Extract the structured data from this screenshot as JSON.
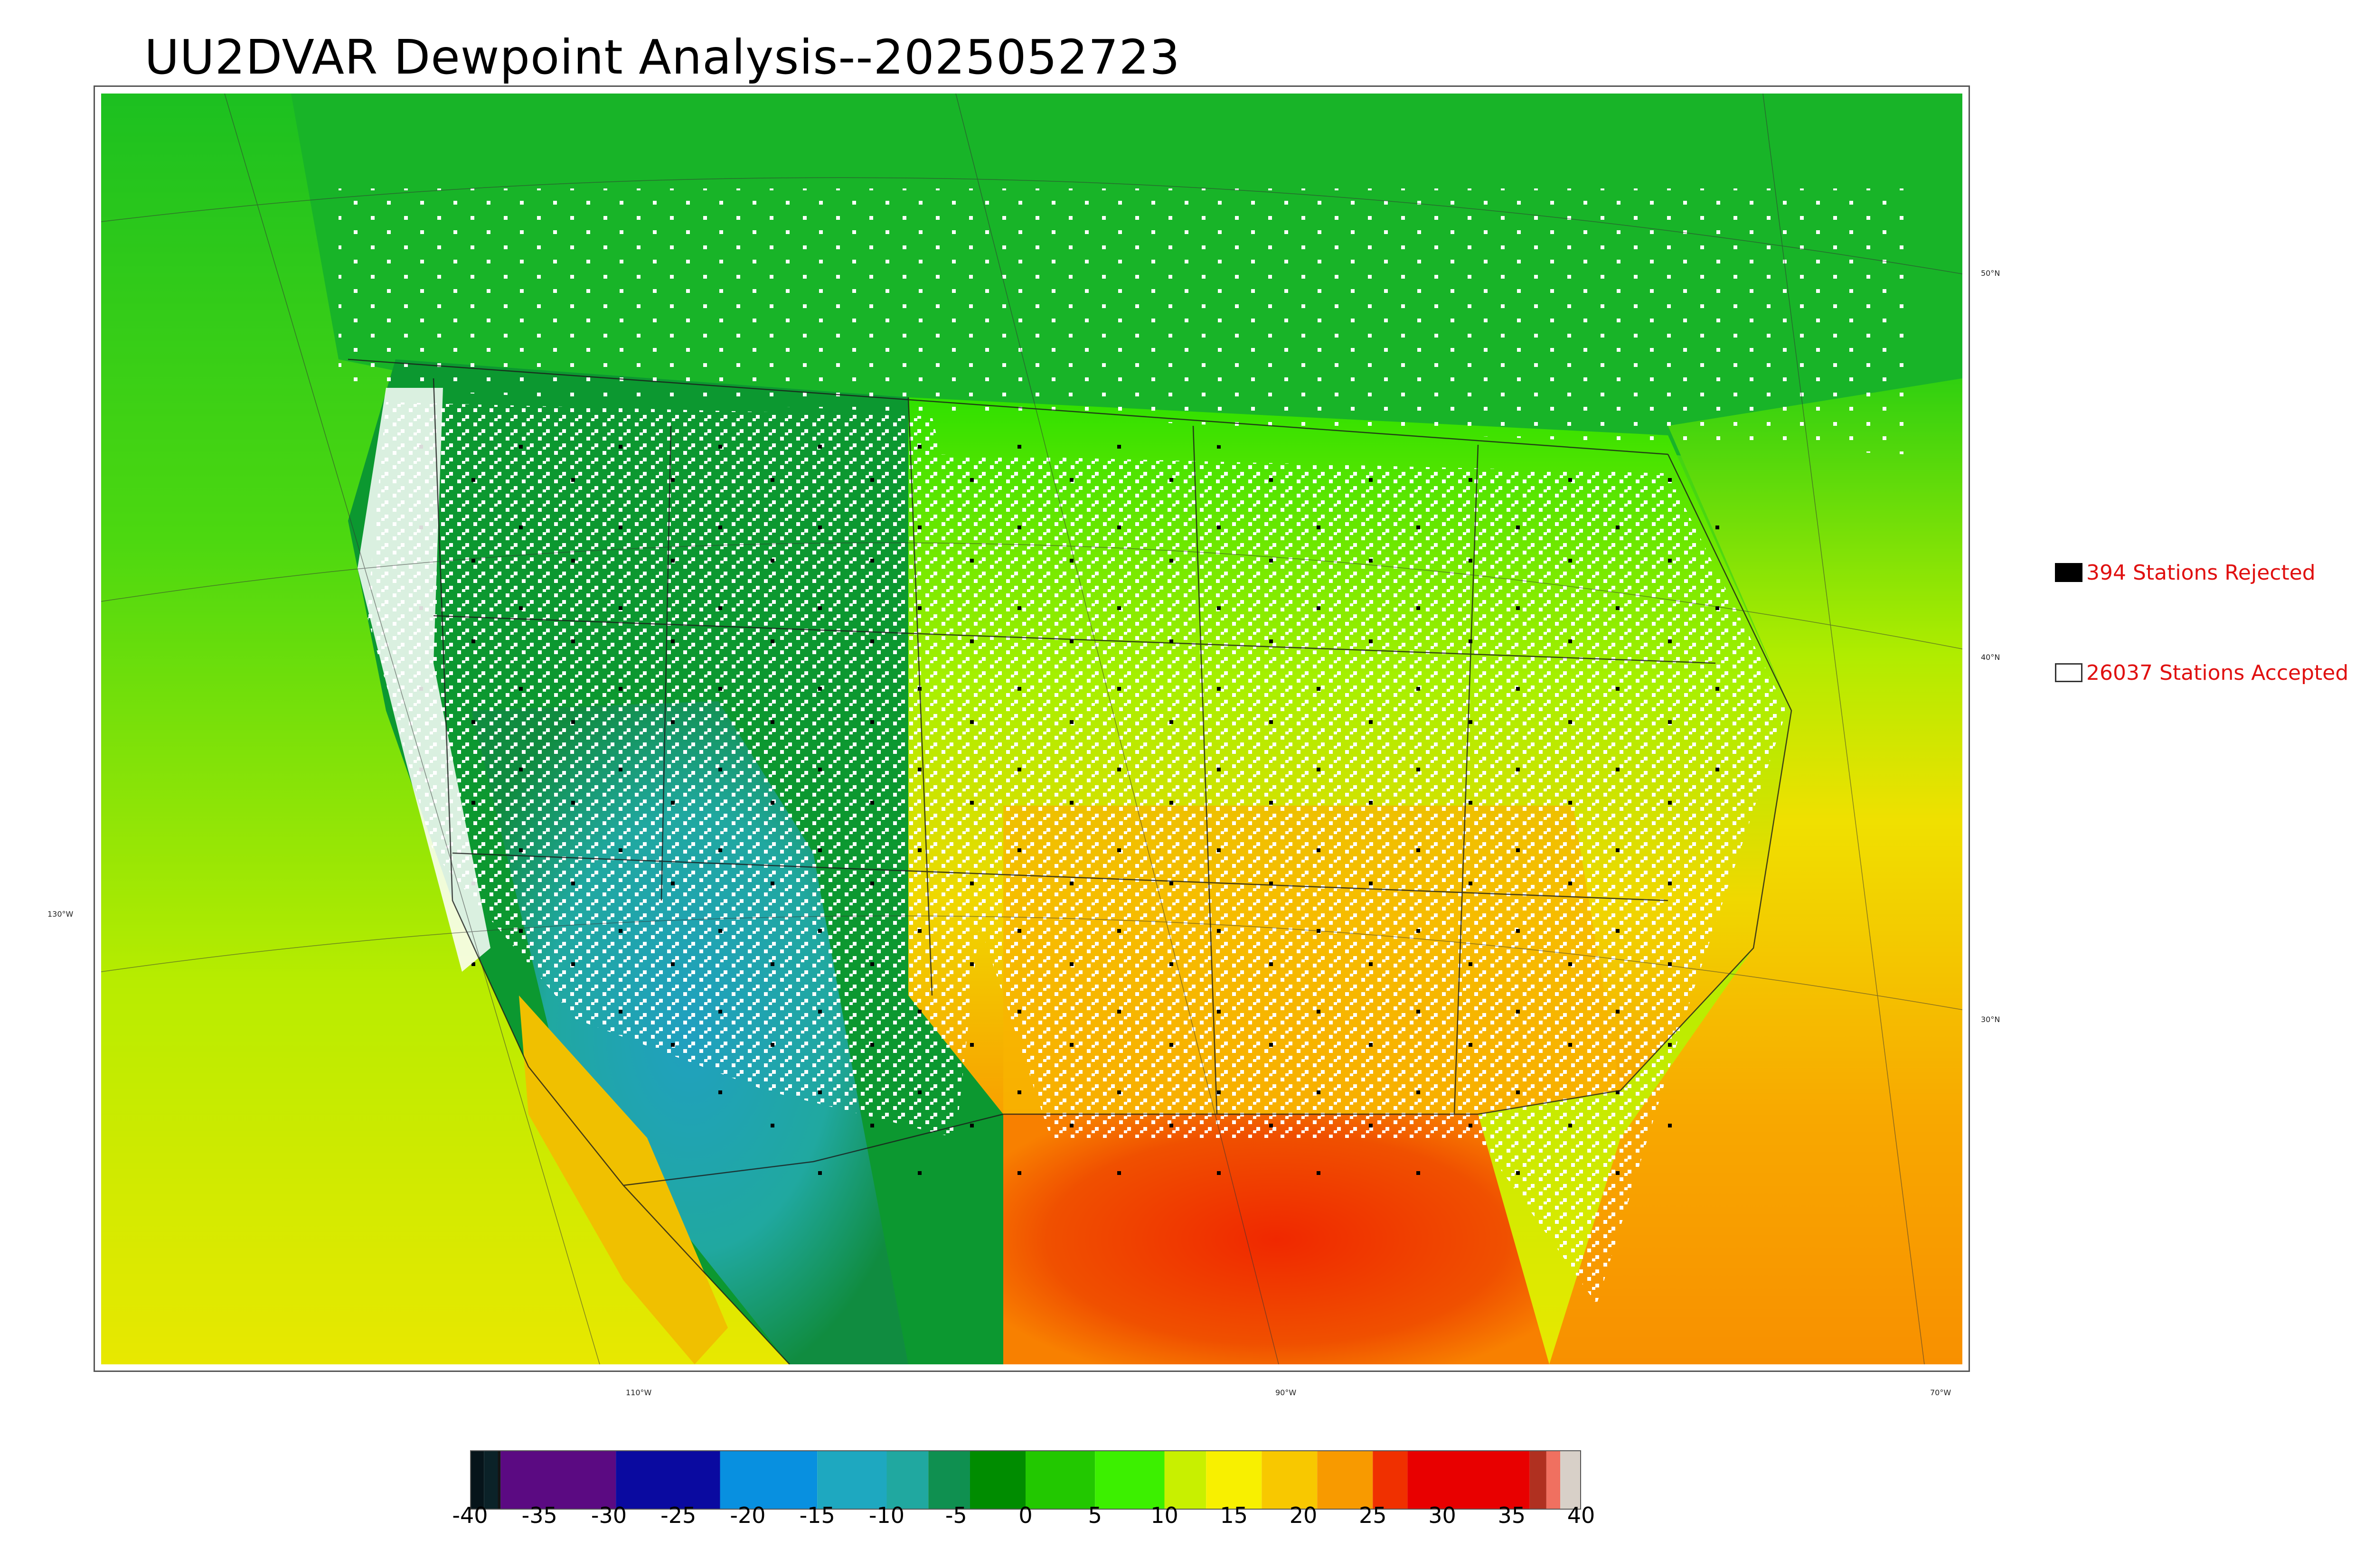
{
  "title": "UU2DVAR Dewpoint Analysis--2025052723",
  "grid_labels": {
    "lat": [
      "50°N",
      "40°N",
      "30°N"
    ],
    "lon_left": "130°W",
    "lon_bottom": [
      "110°W",
      "90°W",
      "70°W"
    ]
  },
  "legend": {
    "rejected": {
      "label": "394 Stations Rejected",
      "swatch_color": "#000000"
    },
    "accepted": {
      "label": "26037 Stations Accepted",
      "swatch_color": "#ffffff"
    }
  },
  "colorbar": {
    "ticks": [
      "-40",
      "-35",
      "-30",
      "-25",
      "-20",
      "-15",
      "-10",
      "-5",
      "0",
      "5",
      "10",
      "15",
      "20",
      "25",
      "30",
      "35",
      "40"
    ],
    "range": [
      -40,
      40
    ],
    "segments": [
      {
        "from": -40,
        "to": -39,
        "color": "#06141a"
      },
      {
        "from": -39,
        "to": -38,
        "color": "#0b2228"
      },
      {
        "from": -38,
        "to": -37.8,
        "color": "#141414"
      },
      {
        "from": -37.8,
        "to": -29.5,
        "color": "#5b0a82"
      },
      {
        "from": -29.5,
        "to": -22,
        "color": "#0a0aa0"
      },
      {
        "from": -22,
        "to": -15,
        "color": "#0890e0"
      },
      {
        "from": -15,
        "to": -10,
        "color": "#1ea8c0"
      },
      {
        "from": -10,
        "to": -7,
        "color": "#20a8a0"
      },
      {
        "from": -7,
        "to": -4,
        "color": "#0f9050"
      },
      {
        "from": -4,
        "to": 0,
        "color": "#008c00"
      },
      {
        "from": 0,
        "to": 5,
        "color": "#22c800"
      },
      {
        "from": 5,
        "to": 10,
        "color": "#3cf000"
      },
      {
        "from": 10,
        "to": 13,
        "color": "#c8f000"
      },
      {
        "from": 13,
        "to": 17,
        "color": "#f8f000"
      },
      {
        "from": 17,
        "to": 21,
        "color": "#f8c800"
      },
      {
        "from": 21,
        "to": 25,
        "color": "#f89a00"
      },
      {
        "from": 25,
        "to": 27.5,
        "color": "#f03000"
      },
      {
        "from": 27.5,
        "to": 36.3,
        "color": "#e80000"
      },
      {
        "from": 36.3,
        "to": 37.5,
        "color": "#b03020"
      },
      {
        "from": 37.5,
        "to": 38.5,
        "color": "#f07060"
      },
      {
        "from": 38.5,
        "to": 40,
        "color": "#d8d0c8"
      }
    ]
  },
  "colors": {
    "ocean_west": "#9ce010",
    "ocean_gulf": "#f04800",
    "ocean_atlantic": "#f8a000",
    "canada_north": "#18b428",
    "dry_southwest": "#20a8a8",
    "station_accepted": "#ffffff",
    "station_rejected": "#000000"
  }
}
